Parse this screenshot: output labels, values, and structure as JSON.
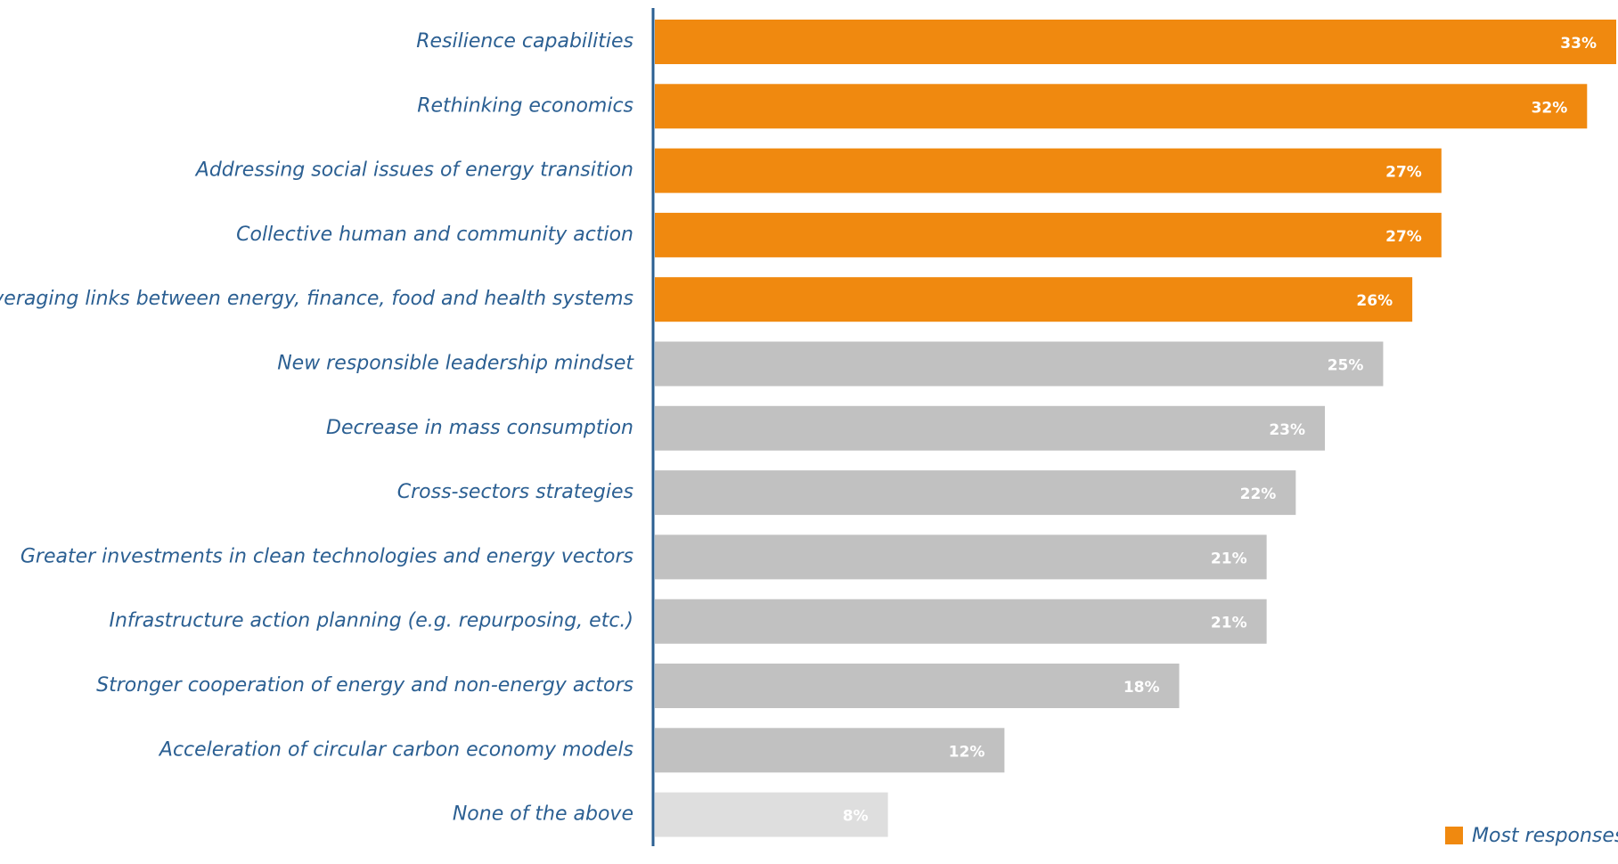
{
  "chart_data": {
    "type": "hbar",
    "categories": [
      "Resilience capabilities",
      "Rethinking economics",
      "Addressing social issues of energy transition",
      "Collective human and community action",
      "Leveraging links between energy, finance, food and health systems",
      "New responsible leadership mindset",
      "Decrease in mass consumption",
      "Cross-sectors strategies",
      "Greater investments in clean technologies and energy vectors",
      "Infrastructure action planning (e.g. repurposing, etc.)",
      "Stronger cooperation of energy and non-energy actors",
      "Acceleration of circular carbon economy models",
      "None of the above"
    ],
    "values": [
      33,
      32,
      27,
      27,
      26,
      25,
      23,
      22,
      21,
      21,
      18,
      12,
      8
    ],
    "value_labels": [
      "33%",
      "32%",
      "27%",
      "27%",
      "26%",
      "25%",
      "23%",
      "22%",
      "21%",
      "21%",
      "18%",
      "12%",
      "8%"
    ],
    "colors": [
      "#f0890f",
      "#f0890f",
      "#f0890f",
      "#f0890f",
      "#f0890f",
      "#c1c1c1",
      "#c1c1c1",
      "#c1c1c1",
      "#c1c1c1",
      "#c1c1c1",
      "#c1c1c1",
      "#c1c1c1",
      "#dedede"
    ],
    "xlim": [
      0,
      33
    ],
    "legend": {
      "label": "Most responses",
      "color": "#f0890f"
    }
  }
}
